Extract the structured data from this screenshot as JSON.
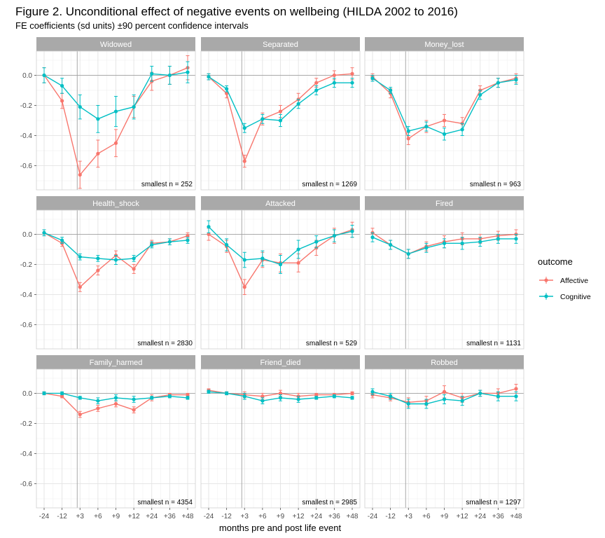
{
  "title": "Figure 2. Unconditional effect of negative events on wellbeing (HILDA 2002 to 2016)",
  "subtitle": "FE coefficients (sd units) ±90 percent confidence intervals",
  "chart_data": {
    "type": "line",
    "facets": "3x3",
    "x": [
      "-24",
      "-12",
      "+3",
      "+6",
      "+9",
      "+12",
      "+24",
      "+36",
      "+48"
    ],
    "xlabel": "months pre and post life event",
    "ylabel": "",
    "ylim": [
      -0.76,
      0.16
    ],
    "yticks": [
      "0.0",
      "-0.2",
      "-0.4",
      "-0.6"
    ],
    "yticks_values": [
      0,
      -0.2,
      -0.4,
      -0.6
    ],
    "event_line_at": "+3",
    "grid": true,
    "legend": {
      "title": "outcome",
      "position": "right",
      "entries": [
        {
          "name": "Affective",
          "color": "#F8766D"
        },
        {
          "name": "Cognitive",
          "color": "#00BFC4"
        }
      ]
    },
    "panels": [
      {
        "name": "Widowed",
        "n_label": "smallest n = 252",
        "series": [
          {
            "name": "Affective",
            "values": [
              0.0,
              -0.17,
              -0.66,
              -0.52,
              -0.45,
              -0.21,
              -0.04,
              0.0,
              0.05
            ],
            "ci": [
              0.05,
              0.05,
              0.09,
              0.09,
              0.09,
              0.07,
              0.06,
              0.06,
              0.08
            ]
          },
          {
            "name": "Cognitive",
            "values": [
              0.0,
              -0.07,
              -0.21,
              -0.29,
              -0.24,
              -0.21,
              0.01,
              0.0,
              0.02
            ],
            "ci": [
              0.05,
              0.05,
              0.08,
              0.09,
              0.1,
              0.08,
              0.05,
              0.06,
              0.07
            ]
          }
        ]
      },
      {
        "name": "Separated",
        "n_label": "smallest n = 1269",
        "series": [
          {
            "name": "Affective",
            "values": [
              -0.01,
              -0.12,
              -0.57,
              -0.29,
              -0.24,
              -0.16,
              -0.05,
              0.0,
              0.01
            ],
            "ci": [
              0.02,
              0.03,
              0.04,
              0.04,
              0.04,
              0.04,
              0.03,
              0.03,
              0.04
            ]
          },
          {
            "name": "Cognitive",
            "values": [
              -0.01,
              -0.09,
              -0.35,
              -0.29,
              -0.3,
              -0.19,
              -0.1,
              -0.05,
              -0.05
            ],
            "ci": [
              0.02,
              0.02,
              0.03,
              0.03,
              0.04,
              0.03,
              0.03,
              0.03,
              0.03
            ]
          }
        ]
      },
      {
        "name": "Money_lost",
        "n_label": "smallest n = 963",
        "series": [
          {
            "name": "Affective",
            "values": [
              -0.01,
              -0.12,
              -0.42,
              -0.34,
              -0.3,
              -0.32,
              -0.1,
              -0.05,
              -0.02
            ],
            "ci": [
              0.02,
              0.03,
              0.04,
              0.04,
              0.04,
              0.04,
              0.03,
              0.03,
              0.03
            ]
          },
          {
            "name": "Cognitive",
            "values": [
              -0.02,
              -0.1,
              -0.37,
              -0.34,
              -0.39,
              -0.36,
              -0.13,
              -0.05,
              -0.03
            ],
            "ci": [
              0.02,
              0.02,
              0.03,
              0.03,
              0.04,
              0.04,
              0.03,
              0.03,
              0.03
            ]
          }
        ]
      },
      {
        "name": "Health_shock",
        "n_label": "smallest n = 2830",
        "series": [
          {
            "name": "Affective",
            "values": [
              0.01,
              -0.06,
              -0.35,
              -0.24,
              -0.14,
              -0.23,
              -0.06,
              -0.05,
              -0.01
            ],
            "ci": [
              0.02,
              0.02,
              0.03,
              0.03,
              0.03,
              0.03,
              0.02,
              0.02,
              0.02
            ]
          },
          {
            "name": "Cognitive",
            "values": [
              0.01,
              -0.04,
              -0.15,
              -0.16,
              -0.17,
              -0.16,
              -0.07,
              -0.05,
              -0.04
            ],
            "ci": [
              0.02,
              0.02,
              0.02,
              0.02,
              0.03,
              0.02,
              0.02,
              0.02,
              0.02
            ]
          }
        ]
      },
      {
        "name": "Attacked",
        "n_label": "smallest n = 529",
        "series": [
          {
            "name": "Affective",
            "values": [
              0.0,
              -0.08,
              -0.35,
              -0.17,
              -0.19,
              -0.19,
              -0.09,
              -0.01,
              0.03
            ],
            "ci": [
              0.04,
              0.04,
              0.05,
              0.05,
              0.06,
              0.06,
              0.05,
              0.05,
              0.05
            ]
          },
          {
            "name": "Cognitive",
            "values": [
              0.05,
              -0.07,
              -0.17,
              -0.16,
              -0.2,
              -0.1,
              -0.05,
              -0.01,
              0.02
            ],
            "ci": [
              0.04,
              0.04,
              0.05,
              0.05,
              0.06,
              0.06,
              0.04,
              0.04,
              0.04
            ]
          }
        ]
      },
      {
        "name": "Fired",
        "n_label": "smallest n = 1131",
        "series": [
          {
            "name": "Affective",
            "values": [
              0.01,
              -0.07,
              -0.13,
              -0.08,
              -0.05,
              -0.03,
              -0.03,
              -0.01,
              0.0
            ],
            "ci": [
              0.03,
              0.03,
              0.03,
              0.03,
              0.04,
              0.04,
              0.03,
              0.03,
              0.03
            ]
          },
          {
            "name": "Cognitive",
            "values": [
              -0.02,
              -0.07,
              -0.13,
              -0.09,
              -0.06,
              -0.06,
              -0.05,
              -0.03,
              -0.03
            ],
            "ci": [
              0.03,
              0.03,
              0.03,
              0.03,
              0.03,
              0.04,
              0.03,
              0.03,
              0.03
            ]
          }
        ]
      },
      {
        "name": "Family_harmed",
        "n_label": "smallest n = 4354",
        "series": [
          {
            "name": "Affective",
            "values": [
              0.0,
              -0.02,
              -0.14,
              -0.1,
              -0.07,
              -0.11,
              -0.03,
              -0.01,
              -0.01
            ],
            "ci": [
              0.01,
              0.01,
              0.02,
              0.02,
              0.02,
              0.02,
              0.02,
              0.01,
              0.01
            ]
          },
          {
            "name": "Cognitive",
            "values": [
              0.0,
              0.0,
              -0.03,
              -0.05,
              -0.03,
              -0.04,
              -0.03,
              -0.02,
              -0.03
            ],
            "ci": [
              0.01,
              0.01,
              0.01,
              0.02,
              0.02,
              0.02,
              0.01,
              0.01,
              0.01
            ]
          }
        ]
      },
      {
        "name": "Friend_died",
        "n_label": "smallest n = 2985",
        "series": [
          {
            "name": "Affective",
            "values": [
              0.02,
              0.0,
              -0.01,
              -0.02,
              0.0,
              -0.02,
              -0.01,
              -0.01,
              0.0
            ],
            "ci": [
              0.01,
              0.01,
              0.02,
              0.02,
              0.02,
              0.02,
              0.01,
              0.01,
              0.01
            ]
          },
          {
            "name": "Cognitive",
            "values": [
              0.01,
              0.0,
              -0.02,
              -0.05,
              -0.03,
              -0.04,
              -0.03,
              -0.02,
              -0.03
            ],
            "ci": [
              0.01,
              0.01,
              0.02,
              0.02,
              0.02,
              0.02,
              0.01,
              0.01,
              0.01
            ]
          }
        ]
      },
      {
        "name": "Robbed",
        "n_label": "smallest n = 1297",
        "series": [
          {
            "name": "Affective",
            "values": [
              -0.01,
              -0.03,
              -0.06,
              -0.05,
              0.01,
              -0.03,
              0.0,
              0.0,
              0.03
            ],
            "ci": [
              0.02,
              0.02,
              0.03,
              0.03,
              0.04,
              0.03,
              0.02,
              0.03,
              0.03
            ]
          },
          {
            "name": "Cognitive",
            "values": [
              0.01,
              -0.02,
              -0.07,
              -0.07,
              -0.04,
              -0.05,
              0.0,
              -0.02,
              -0.02
            ],
            "ci": [
              0.02,
              0.02,
              0.03,
              0.03,
              0.03,
              0.03,
              0.02,
              0.03,
              0.03
            ]
          }
        ]
      }
    ]
  }
}
